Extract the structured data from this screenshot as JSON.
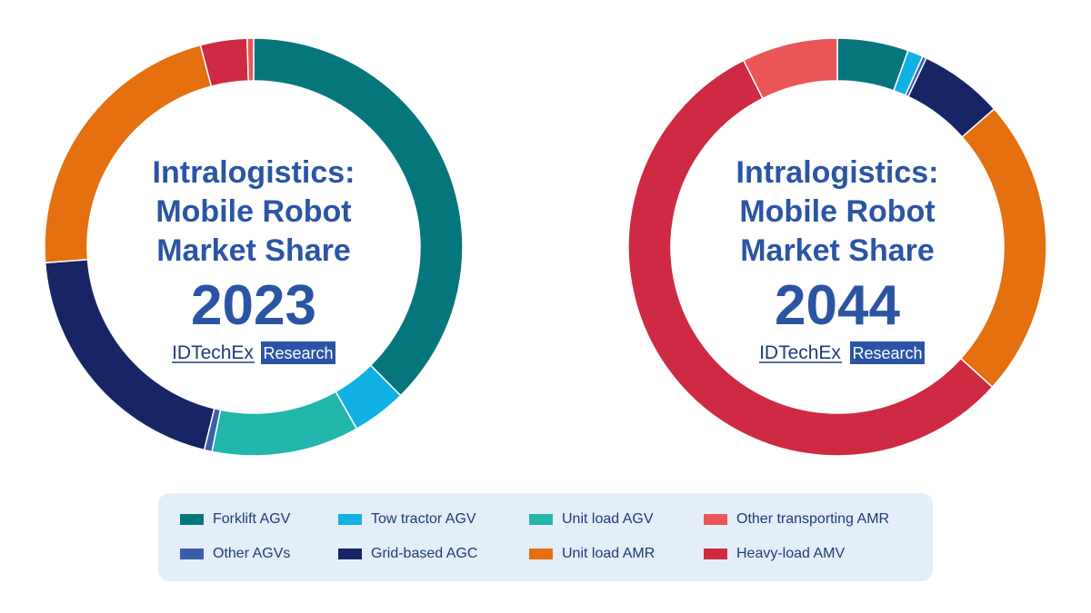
{
  "categories": [
    {
      "name": "Forklift AGV",
      "color": "#05777c"
    },
    {
      "name": "Tow tractor AGV",
      "color": "#12b1e5"
    },
    {
      "name": "Unit load AGV",
      "color": "#22b6ad"
    },
    {
      "name": "Other AGVs",
      "color": "#3a5ea9"
    },
    {
      "name": "Grid-based AGC",
      "color": "#172564"
    },
    {
      "name": "Unit load AMR",
      "color": "#e5700f"
    },
    {
      "name": "Heavy-load AMV",
      "color": "#cf2a43"
    },
    {
      "name": "Other transporting AMR",
      "color": "#ea5657"
    }
  ],
  "legend_order": [
    "Forklift AGV",
    "Tow tractor AGV",
    "Unit load AGV",
    "Other transporting AMR",
    "Other AGVs",
    "Grid-based AGC",
    "Unit load AMR",
    "Heavy-load AMV"
  ],
  "brand": {
    "name": "IDTechEx",
    "tag": "Research"
  },
  "chart_data": [
    {
      "type": "pie",
      "donut": true,
      "title_lines": [
        "Intralogistics:",
        "Mobile Robot",
        "Market Share"
      ],
      "year": "2023",
      "slices": [
        {
          "name": "Forklift AGV",
          "value": 37.6
        },
        {
          "name": "Tow tractor AGV",
          "value": 4.2
        },
        {
          "name": "Unit load AGV",
          "value": 11.4
        },
        {
          "name": "Other AGVs",
          "value": 0.6
        },
        {
          "name": "Grid-based AGC",
          "value": 20.0
        },
        {
          "name": "Unit load AMR",
          "value": 22.1
        },
        {
          "name": "Heavy-load AMV",
          "value": 3.6
        },
        {
          "name": "Other transporting AMR",
          "value": 0.5
        }
      ]
    },
    {
      "type": "pie",
      "donut": true,
      "title_lines": [
        "Intralogistics:",
        "Mobile Robot",
        "Market Share"
      ],
      "year": "2044",
      "slices": [
        {
          "name": "Forklift AGV",
          "value": 5.5
        },
        {
          "name": "Tow tractor AGV",
          "value": 1.2
        },
        {
          "name": "Unit load AGV",
          "value": 0.0
        },
        {
          "name": "Other AGVs",
          "value": 0.3
        },
        {
          "name": "Grid-based AGC",
          "value": 6.5
        },
        {
          "name": "Unit load AMR",
          "value": 23.2
        },
        {
          "name": "Heavy-load AMV",
          "value": 55.9
        },
        {
          "name": "Other transporting AMR",
          "value": 7.4
        }
      ]
    }
  ]
}
